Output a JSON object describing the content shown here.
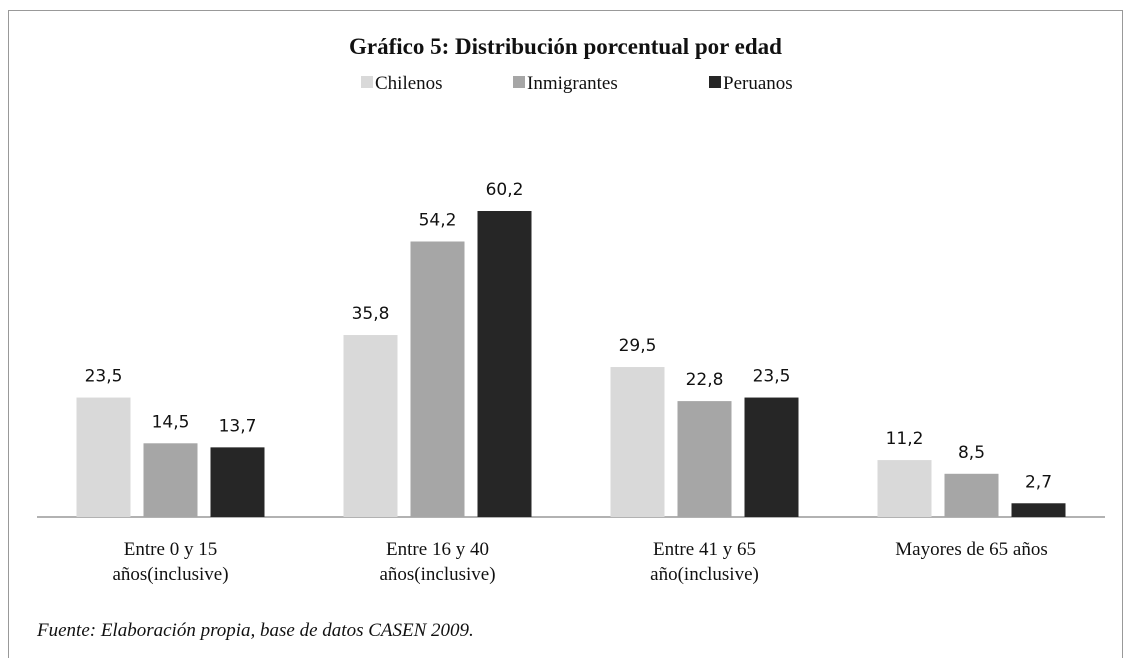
{
  "chart_data": {
    "type": "bar",
    "title": "Gráfico 5: Distribución porcentual por edad",
    "source": "Fuente: Elaboración propia, base de datos CASEN 2009.",
    "categories": [
      "Entre 0 y 15\naños(inclusive)",
      "Entre 16 y 40\naños(inclusive)",
      "Entre 41 y 65\naño(inclusive)",
      "Mayores de 65 años"
    ],
    "series": [
      {
        "name": "Chilenos",
        "color": "#d9d9d9",
        "values": [
          23.5,
          35.8,
          29.5,
          11.2
        ],
        "value_labels": [
          "23,5",
          "35,8",
          "29,5",
          "11,2"
        ]
      },
      {
        "name": "Inmigrantes",
        "color": "#a6a6a6",
        "values": [
          14.5,
          54.2,
          22.8,
          8.5
        ],
        "value_labels": [
          "14,5",
          "54,2",
          "22,8",
          "8,5"
        ]
      },
      {
        "name": "Peruanos",
        "color": "#262626",
        "values": [
          13.7,
          60.2,
          23.5,
          2.7
        ],
        "value_labels": [
          "13,7",
          "60,2",
          "23,5",
          "2,7"
        ]
      }
    ],
    "legend": "top"
  }
}
